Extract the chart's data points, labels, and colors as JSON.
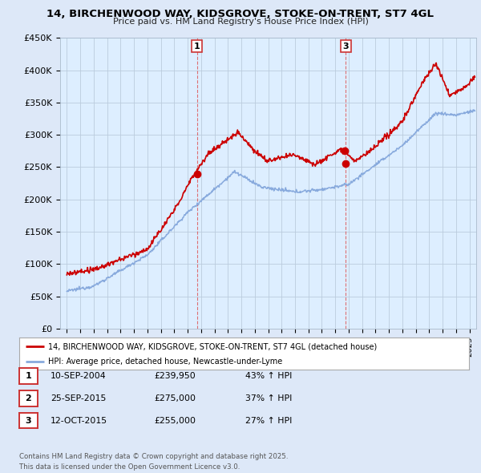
{
  "title": "14, BIRCHENWOOD WAY, KIDSGROVE, STOKE-ON-TRENT, ST7 4GL",
  "subtitle": "Price paid vs. HM Land Registry's House Price Index (HPI)",
  "ylabel_ticks": [
    "£0",
    "£50K",
    "£100K",
    "£150K",
    "£200K",
    "£250K",
    "£300K",
    "£350K",
    "£400K",
    "£450K"
  ],
  "ytick_values": [
    0,
    50000,
    100000,
    150000,
    200000,
    250000,
    300000,
    350000,
    400000,
    450000
  ],
  "ylim": [
    0,
    450000
  ],
  "xlim_start": 1994.5,
  "xlim_end": 2025.5,
  "xtick_years": [
    1995,
    1996,
    1997,
    1998,
    1999,
    2000,
    2001,
    2002,
    2003,
    2004,
    2005,
    2006,
    2007,
    2008,
    2009,
    2010,
    2011,
    2012,
    2013,
    2014,
    2015,
    2016,
    2017,
    2018,
    2019,
    2020,
    2021,
    2022,
    2023,
    2024,
    2025
  ],
  "red_line_color": "#cc0000",
  "blue_line_color": "#88aadd",
  "vline_color": "#dd4444",
  "legend_label_red": "14, BIRCHENWOOD WAY, KIDSGROVE, STOKE-ON-TRENT, ST7 4GL (detached house)",
  "legend_label_blue": "HPI: Average price, detached house, Newcastle-under-Lyme",
  "transaction_1_date": 2004.69,
  "transaction_1_price": 239950,
  "transaction_2_date": 2015.73,
  "transaction_2_price": 275000,
  "transaction_3_date": 2015.78,
  "transaction_3_price": 255000,
  "table_rows": [
    {
      "num": "1",
      "date": "10-SEP-2004",
      "price": "£239,950",
      "hpi": "43% ↑ HPI"
    },
    {
      "num": "2",
      "date": "25-SEP-2015",
      "price": "£275,000",
      "hpi": "37% ↑ HPI"
    },
    {
      "num": "3",
      "date": "12-OCT-2015",
      "price": "£255,000",
      "hpi": "27% ↑ HPI"
    }
  ],
  "footer_text": "Contains HM Land Registry data © Crown copyright and database right 2025.\nThis data is licensed under the Open Government Licence v3.0.",
  "bg_color": "#dde8f8",
  "plot_bg_color": "#ddeeff",
  "legend_bg_color": "#ffffff",
  "table_border_color": "#cc3333"
}
